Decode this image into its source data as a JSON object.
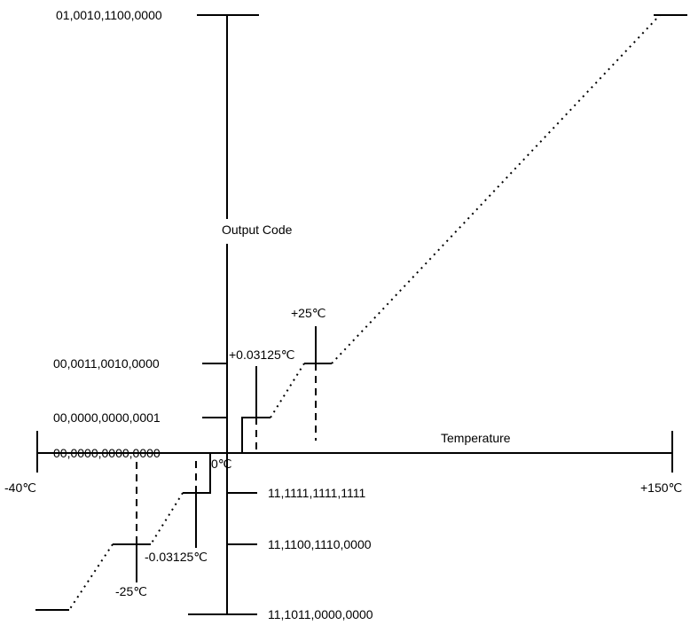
{
  "axes": {
    "y_label": "Output Code",
    "x_label": "Temperature"
  },
  "y_codes": {
    "max": "01,0010,1100,0000",
    "plus25": "00,0011,0010,0000",
    "plus_lsb": "00,0000,0000,0001",
    "zero": "00,0000,0000,0000",
    "minus_lsb": "11,1111,1111,1111",
    "minus25": "11,1100,1110,0000",
    "min": "11,1011,0000,0000"
  },
  "temperatures": {
    "min": "-40℃",
    "max": "+150℃",
    "zero": "0℃",
    "plus_lsb": "+0.03125℃",
    "minus_lsb": "-0.03125℃",
    "plus25": "+25℃",
    "minus25": "-25℃"
  }
}
